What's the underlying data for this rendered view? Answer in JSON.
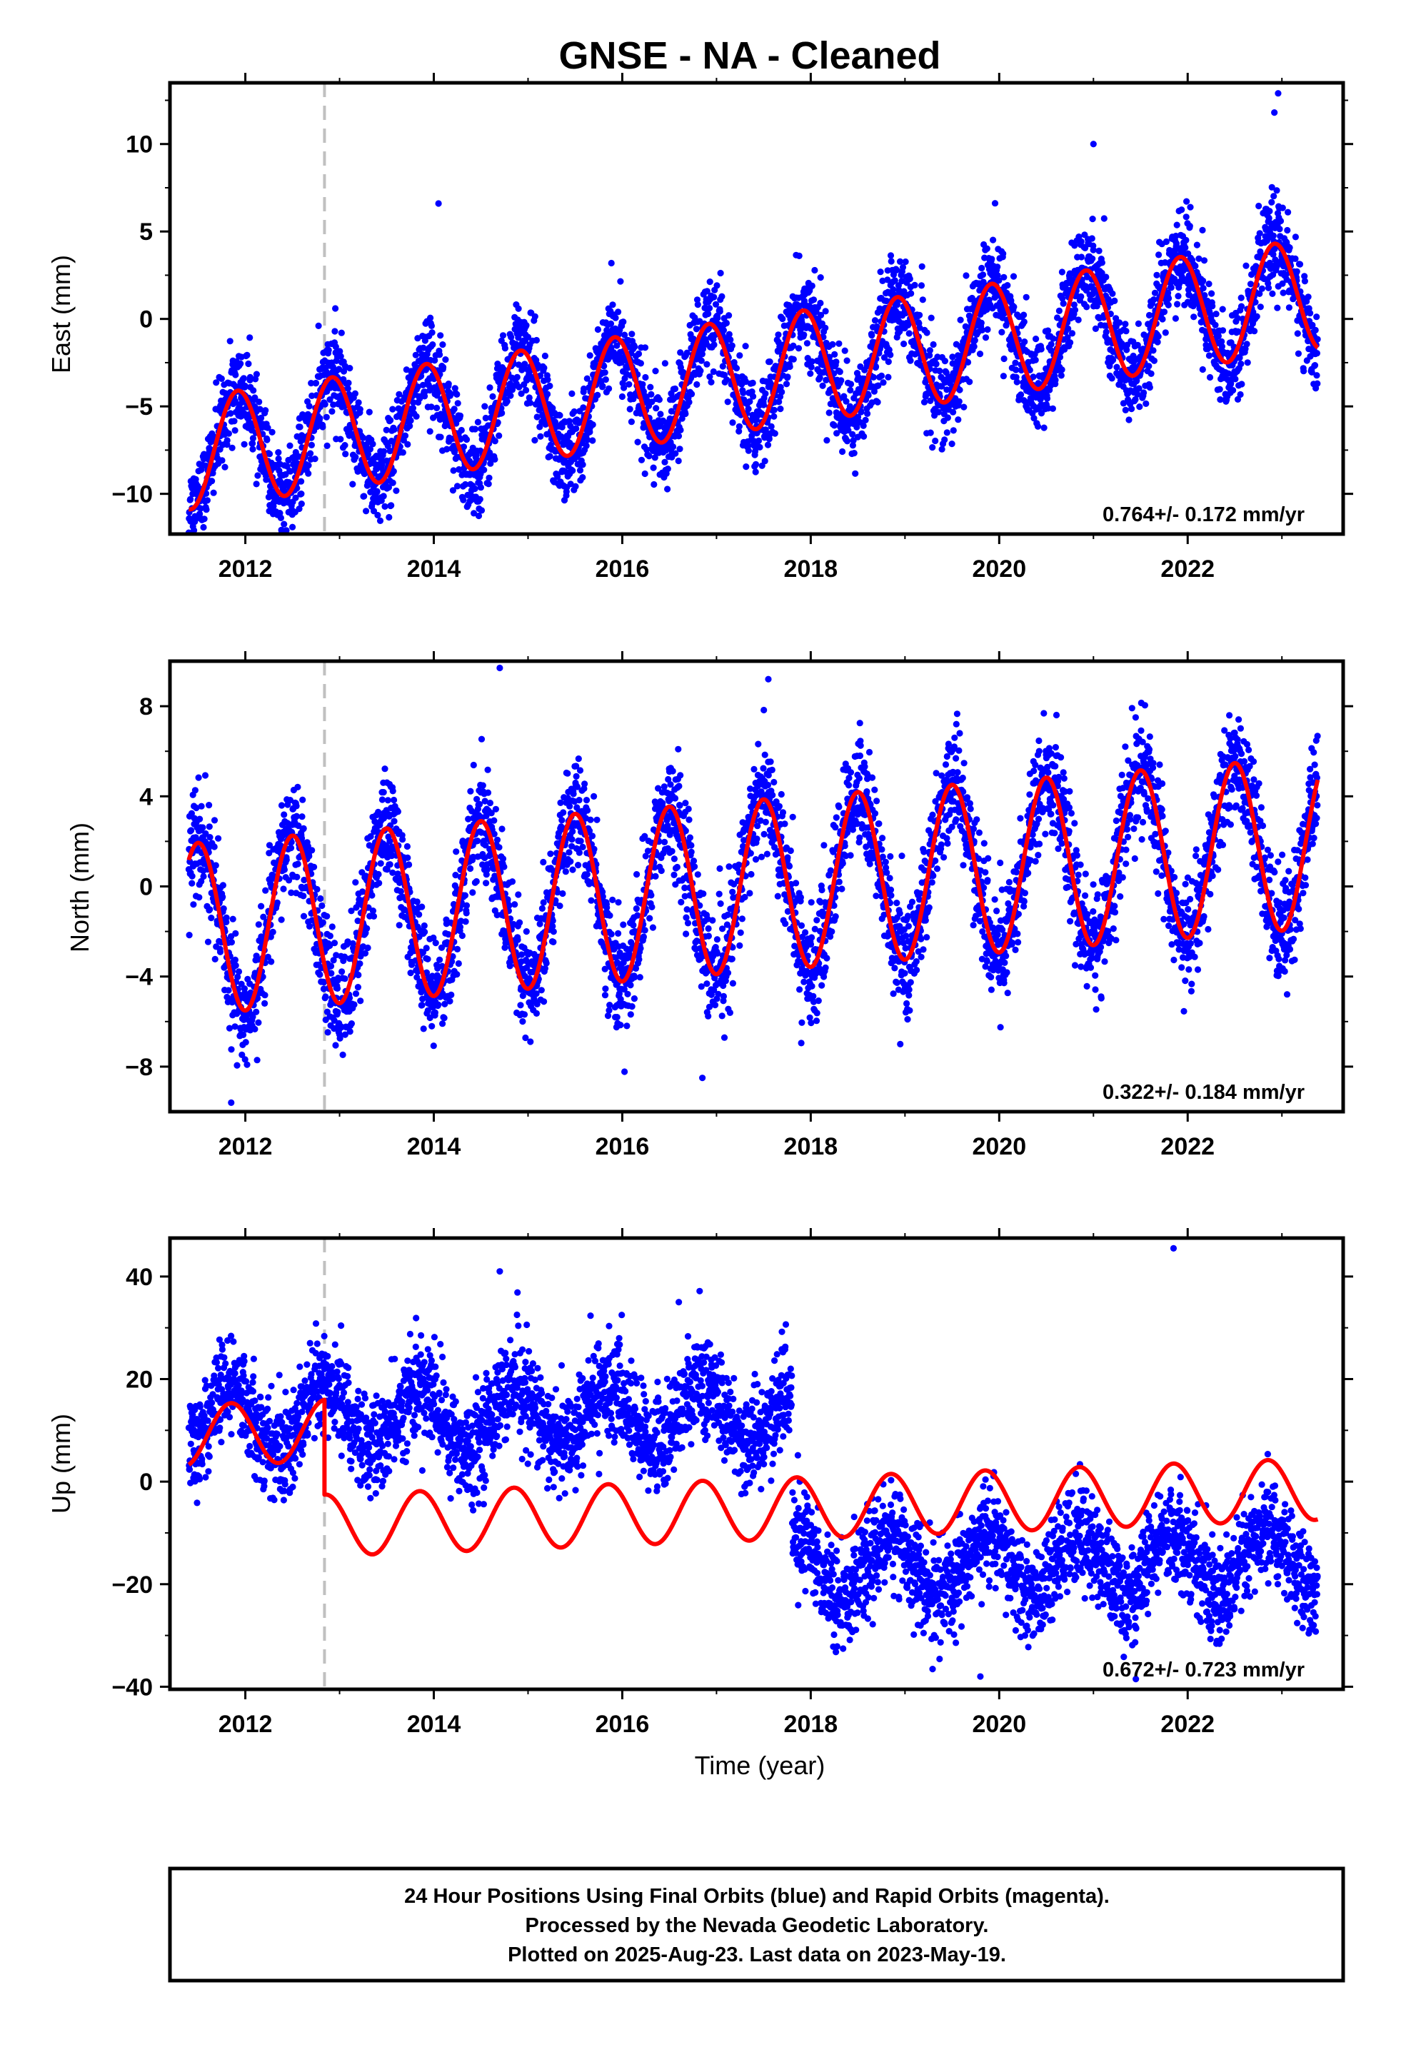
{
  "title": "GNSE  - NA - Cleaned",
  "x_axis_label": "Time (year)",
  "footer": {
    "line1": "24 Hour Positions Using Final Orbits (blue) and Rapid Orbits (magenta).",
    "line2": "Processed by the Nevada Geodetic Laboratory.",
    "line3": "Plotted on 2025-Aug-23. Last data on 2023-May-19."
  },
  "colors": {
    "final_orbits": "#0000ff",
    "model_fit": "#ff0000",
    "offset_marker": "#c0c0c0",
    "frame": "#000000"
  },
  "chart_data": [
    {
      "type": "scatter",
      "panel": "east",
      "ylabel": "East (mm)",
      "xlim": [
        2011.2,
        2023.65
      ],
      "ylim": [
        -12.3,
        13.5
      ],
      "yticks": [
        -10,
        -5,
        0,
        5,
        10
      ],
      "ytick_labels": [
        "−10",
        "−5",
        "0",
        "5",
        "10"
      ],
      "xticks": [
        2012,
        2014,
        2016,
        2018,
        2020,
        2022
      ],
      "xtick_labels": [
        "2012",
        "2014",
        "2016",
        "2018",
        "2020",
        "2022"
      ],
      "rate_text": "0.764+/- 0.172 mm/yr",
      "offset_epoch": 2012.84,
      "data_span": [
        2011.4,
        2023.38
      ],
      "fit": {
        "t0": 2011.4,
        "y0": -7.7,
        "rate": 0.764,
        "amp_annual": 3.2,
        "peak_phase": 0.92,
        "offsets": []
      },
      "scatter_sd": 1.3,
      "outliers": [
        [
          2012.5,
          -11.9
        ],
        [
          2022.96,
          12.9
        ],
        [
          2022.92,
          11.8
        ],
        [
          2021.0,
          10.0
        ],
        [
          2014.05,
          6.6
        ]
      ]
    },
    {
      "type": "scatter",
      "panel": "north",
      "ylabel": "North (mm)",
      "xlim": [
        2011.2,
        2023.65
      ],
      "ylim": [
        -10,
        10
      ],
      "yticks": [
        -8,
        -4,
        0,
        4,
        8
      ],
      "ytick_labels": [
        "−8",
        "−4",
        "0",
        "4",
        "8"
      ],
      "xticks": [
        2012,
        2014,
        2016,
        2018,
        2020,
        2022
      ],
      "xtick_labels": [
        "2012",
        "2014",
        "2016",
        "2018",
        "2020",
        "2022"
      ],
      "rate_text": "0.322+/- 0.184 mm/yr",
      "offset_epoch": 2012.84,
      "data_span": [
        2011.4,
        2023.38
      ],
      "fit": {
        "t0": 2011.4,
        "y0": -1.9,
        "rate": 0.322,
        "amp_annual": 3.8,
        "peak_phase": 0.5,
        "offsets": []
      },
      "scatter_sd": 1.2,
      "outliers": [
        [
          2014.7,
          9.7
        ],
        [
          2011.85,
          -9.6
        ],
        [
          2016.85,
          -8.5
        ],
        [
          2018.95,
          -7.0
        ],
        [
          2017.55,
          9.2
        ]
      ]
    },
    {
      "type": "scatter",
      "panel": "up",
      "ylabel": "Up (mm)",
      "xlim": [
        2011.2,
        2023.65
      ],
      "ylim": [
        -40.5,
        47.5
      ],
      "yticks": [
        -40,
        -20,
        0,
        20,
        40
      ],
      "ytick_labels": [
        "−40",
        "−20",
        "0",
        "20",
        "40"
      ],
      "xticks": [
        2012,
        2014,
        2016,
        2018,
        2020,
        2022
      ],
      "xtick_labels": [
        "2012",
        "2014",
        "2016",
        "2018",
        "2020",
        "2022"
      ],
      "rate_text": "0.672+/- 0.723 mm/yr",
      "offset_epoch": 2012.84,
      "data_span": [
        2011.4,
        2023.38
      ],
      "fit": {
        "t0": 2011.4,
        "y0": 9.0,
        "rate": 0.672,
        "amp_annual": 6.0,
        "peak_phase": 0.85,
        "offsets": [
          [
            2012.84,
            -18.5
          ]
        ]
      },
      "data_shift": {
        "before": 2017.8,
        "mean": 12.0,
        "after_mean": -18.0
      },
      "scatter_sd": 4.8,
      "outliers": [
        [
          2021.85,
          45.5
        ],
        [
          2014.7,
          41.0
        ],
        [
          2016.6,
          35.0
        ],
        [
          2019.8,
          -38.0
        ],
        [
          2021.45,
          -38.5
        ]
      ]
    }
  ]
}
